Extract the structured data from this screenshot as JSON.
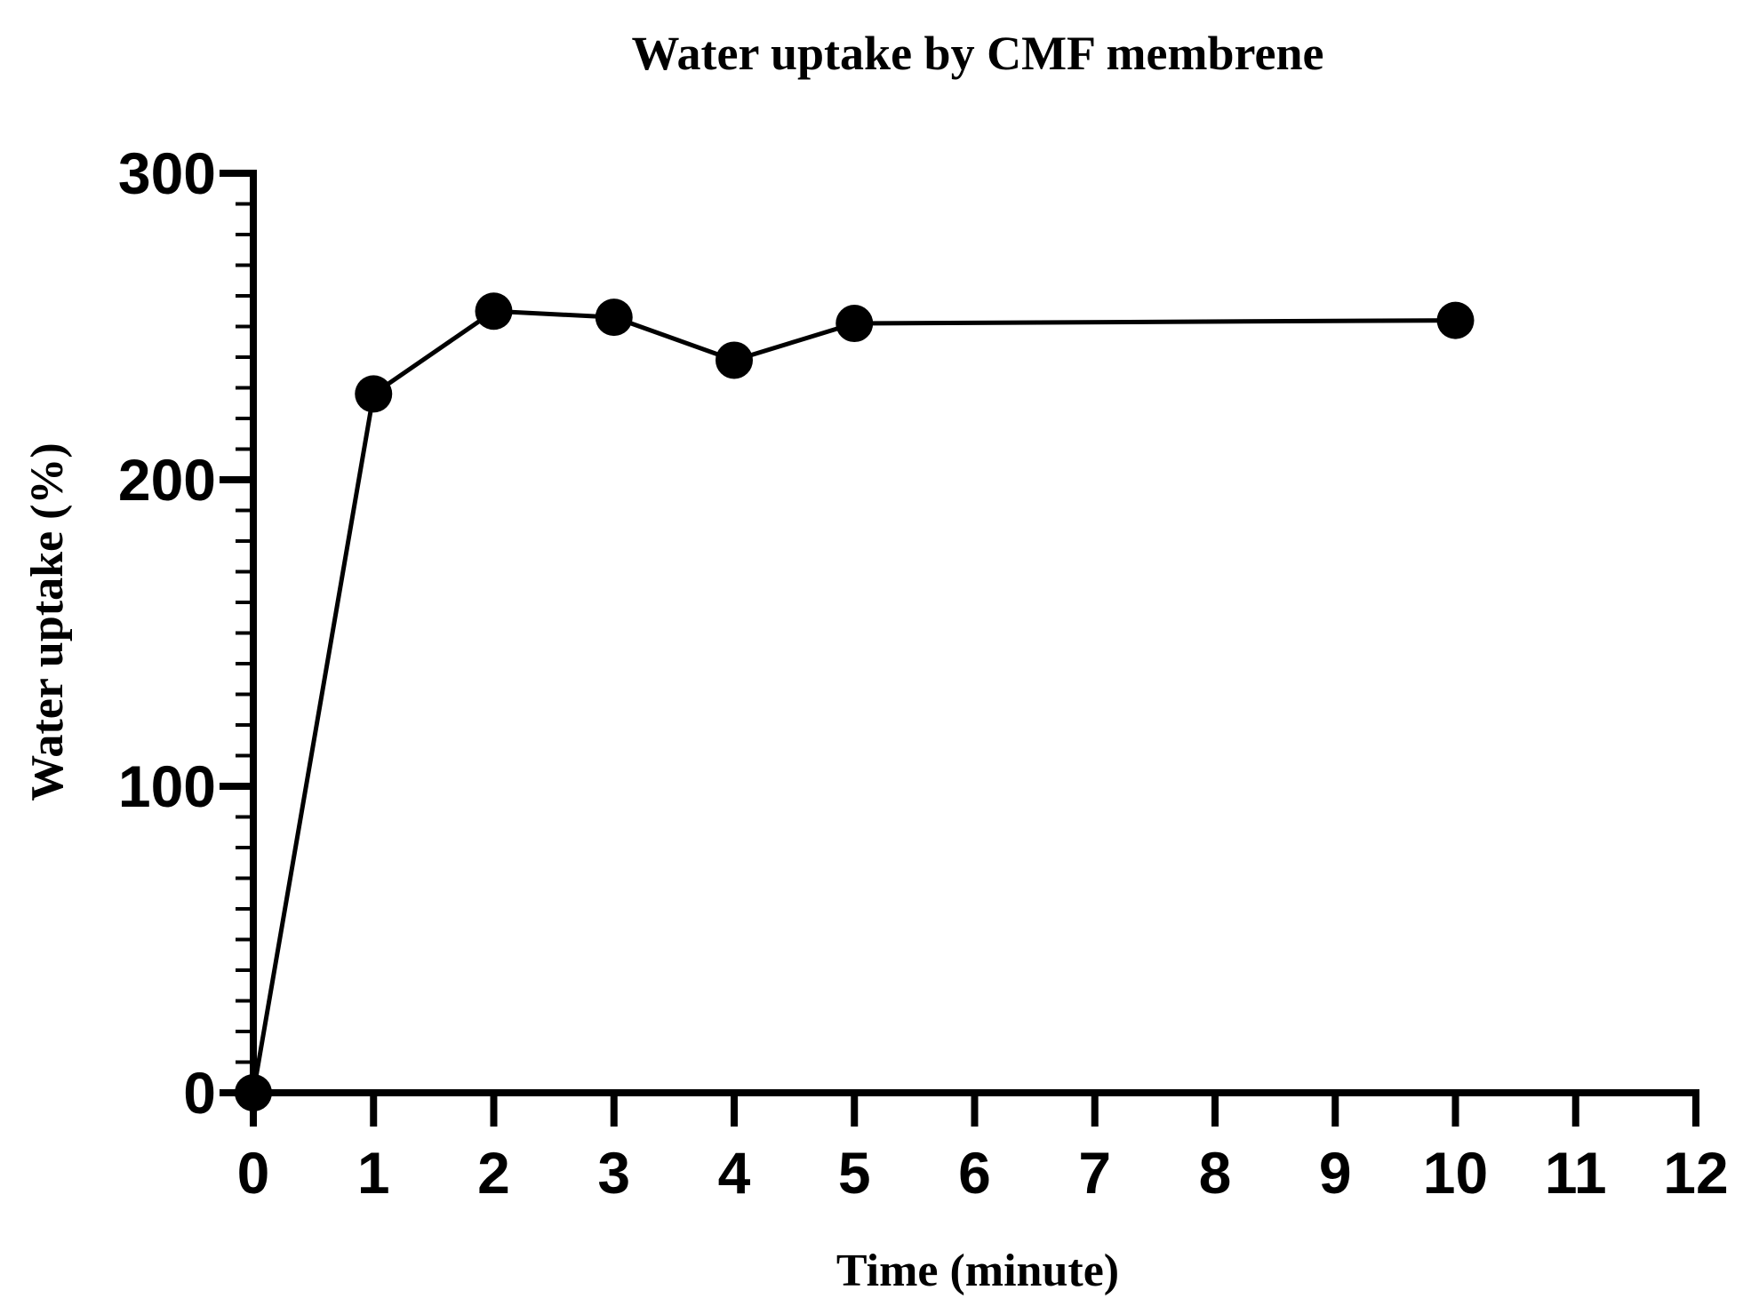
{
  "chart_data": {
    "type": "line",
    "title": "Water uptake by CMF membrene",
    "xlabel": "Time (minute)",
    "ylabel": "Water uptake (%)",
    "xlim": [
      0,
      12
    ],
    "ylim": [
      0,
      300
    ],
    "x_ticks": [
      0,
      1,
      2,
      3,
      4,
      5,
      6,
      7,
      8,
      9,
      10,
      11,
      12
    ],
    "x_tick_labels": [
      "0",
      "1",
      "2",
      "3",
      "4",
      "5",
      "6",
      "7",
      "8",
      "9",
      "10",
      "11",
      "12"
    ],
    "y_ticks": [
      0,
      100,
      200,
      300
    ],
    "y_tick_labels": [
      "0",
      "100",
      "200",
      "300"
    ],
    "y_minor_step": 10,
    "grid": false,
    "colors": {
      "line": "#000000",
      "marker": "#000000",
      "axis": "#000000"
    },
    "series": [
      {
        "x": [
          0,
          1,
          2,
          3,
          4,
          5,
          10
        ],
        "y": [
          0,
          228,
          255,
          253,
          239,
          251,
          252
        ]
      }
    ]
  }
}
